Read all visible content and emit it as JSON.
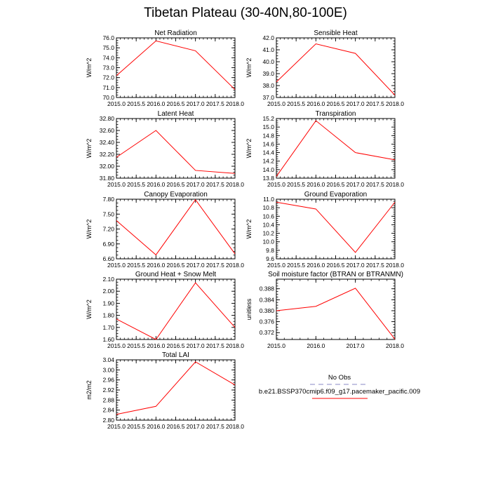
{
  "title": "Tibetan Plateau (30-40N,80-100E)",
  "legend": {
    "entries": [
      {
        "label": "No Obs",
        "color": "#b0b0d8",
        "style": "dashed"
      },
      {
        "label": "b.e21.BSSP370cmip6.f09_g17.pacemaker_pacific.009",
        "color": "#ff0000",
        "style": "solid"
      }
    ]
  },
  "chart_data": [
    {
      "type": "line",
      "title": "Net Radiation",
      "ylabel": "W/m^2",
      "xlim": [
        2015.0,
        2018.0
      ],
      "ylim": [
        70.0,
        76.0
      ],
      "xticks": [
        "2015.0",
        "2015.5",
        "2016.0",
        "2016.5",
        "2017.0",
        "2017.5",
        "2018.0"
      ],
      "yticks": [
        "70.0",
        "71.0",
        "72.0",
        "73.0",
        "74.0",
        "75.0",
        "76.0"
      ],
      "x": [
        2015,
        2016,
        2017,
        2018
      ],
      "series": [
        {
          "values": [
            72.2,
            75.7,
            74.7,
            70.8
          ],
          "color": "#ff0000"
        }
      ]
    },
    {
      "type": "line",
      "title": "Sensible Heat",
      "ylabel": "W/m^2",
      "xlim": [
        2015.0,
        2018.0
      ],
      "ylim": [
        37.0,
        42.0
      ],
      "xticks": [
        "2015.0",
        "2015.5",
        "2016.0",
        "2016.5",
        "2017.0",
        "2017.5",
        "2018.0"
      ],
      "yticks": [
        "37.0",
        "38.0",
        "39.0",
        "40.0",
        "41.0",
        "42.0"
      ],
      "x": [
        2015,
        2016,
        2017,
        2018
      ],
      "series": [
        {
          "values": [
            38.3,
            41.5,
            40.7,
            37.2
          ],
          "color": "#ff0000"
        }
      ]
    },
    {
      "type": "line",
      "title": "Latent Heat",
      "ylabel": "W/m^2",
      "xlim": [
        2015.0,
        2018.0
      ],
      "ylim": [
        31.8,
        32.8
      ],
      "xticks": [
        "2015.0",
        "2015.5",
        "2016.0",
        "2016.5",
        "2017.0",
        "2017.5",
        "2018.0"
      ],
      "yticks": [
        "31.80",
        "32.00",
        "32.20",
        "32.40",
        "32.60",
        "32.80"
      ],
      "x": [
        2015,
        2016,
        2017,
        2018
      ],
      "series": [
        {
          "values": [
            32.15,
            32.6,
            31.93,
            31.88
          ],
          "color": "#ff0000"
        }
      ]
    },
    {
      "type": "line",
      "title": "Transpiration",
      "ylabel": "W/m^2",
      "xlim": [
        2015.0,
        2018.0
      ],
      "ylim": [
        13.8,
        15.2
      ],
      "xticks": [
        "2015.0",
        "2015.5",
        "2016.0",
        "2016.5",
        "2017.0",
        "2017.5",
        "2018.0"
      ],
      "yticks": [
        "13.8",
        "14.0",
        "14.2",
        "14.4",
        "14.6",
        "14.8",
        "15.0",
        "15.2"
      ],
      "x": [
        2015,
        2016,
        2017,
        2018
      ],
      "series": [
        {
          "values": [
            13.84,
            15.15,
            14.4,
            14.23
          ],
          "color": "#ff0000"
        }
      ]
    },
    {
      "type": "line",
      "title": "Canopy Evaporation",
      "ylabel": "W/m^2",
      "xlim": [
        2015.0,
        2018.0
      ],
      "ylim": [
        6.6,
        7.8
      ],
      "xticks": [
        "2015.0",
        "2015.5",
        "2016.0",
        "2016.5",
        "2017.0",
        "2017.5",
        "2018.0"
      ],
      "yticks": [
        "6.60",
        "6.90",
        "7.20",
        "7.50",
        "7.80"
      ],
      "x": [
        2015,
        2016,
        2017,
        2018
      ],
      "series": [
        {
          "values": [
            7.37,
            6.68,
            7.79,
            6.7
          ],
          "color": "#ff0000"
        }
      ]
    },
    {
      "type": "line",
      "title": "Ground Evaporation",
      "ylabel": "W/m^2",
      "xlim": [
        2015.0,
        2018.0
      ],
      "ylim": [
        9.6,
        11.0
      ],
      "xticks": [
        "2015.0",
        "2015.5",
        "2016.0",
        "2016.5",
        "2017.0",
        "2017.5",
        "2018.0"
      ],
      "yticks": [
        "9.6",
        "9.8",
        "10.0",
        "10.2",
        "10.4",
        "10.6",
        "10.8",
        "11.0"
      ],
      "x": [
        2015,
        2016,
        2017,
        2018
      ],
      "series": [
        {
          "values": [
            10.93,
            10.77,
            9.75,
            10.93
          ],
          "color": "#ff0000"
        }
      ]
    },
    {
      "type": "line",
      "title": "Ground Heat + Snow Melt",
      "ylabel": "W/m^2",
      "xlim": [
        2015.0,
        2018.0
      ],
      "ylim": [
        1.6,
        2.1
      ],
      "xticks": [
        "2015.0",
        "2015.5",
        "2016.0",
        "2016.5",
        "2017.0",
        "2017.5",
        "2018.0"
      ],
      "yticks": [
        "1.60",
        "1.70",
        "1.80",
        "1.90",
        "2.00",
        "2.10"
      ],
      "x": [
        2015,
        2016,
        2017,
        2018
      ],
      "series": [
        {
          "values": [
            1.77,
            1.6,
            2.07,
            1.7
          ],
          "color": "#ff0000"
        }
      ]
    },
    {
      "type": "line",
      "title": "Soil moisture factor (BTRAN or BTRANMN)",
      "ylabel": "unitless",
      "xlim": [
        2015.0,
        2018.0
      ],
      "ylim": [
        0.3695,
        0.3915
      ],
      "xticks": [
        "2015.0",
        "2016.0",
        "2017.0",
        "2018.0"
      ],
      "yticks": [
        "0.372",
        "0.376",
        "0.380",
        "0.384",
        "0.388"
      ],
      "x": [
        2015,
        2016,
        2017,
        2018
      ],
      "series": [
        {
          "values": [
            0.38,
            0.3816,
            0.3882,
            0.3696
          ],
          "color": "#ff0000"
        }
      ]
    },
    {
      "type": "line",
      "title": "Total LAI",
      "ylabel": "m2/m2",
      "xlim": [
        2015.0,
        2018.0
      ],
      "ylim": [
        2.8,
        3.04
      ],
      "xticks": [
        "2015.0",
        "2015.5",
        "2016.0",
        "2016.5",
        "2017.0",
        "2017.5",
        "2018.0"
      ],
      "yticks": [
        "2.80",
        "2.84",
        "2.88",
        "2.92",
        "2.96",
        "3.00",
        "3.04"
      ],
      "x": [
        2015,
        2016,
        2017,
        2018
      ],
      "series": [
        {
          "values": [
            2.823,
            2.855,
            3.032,
            2.94
          ],
          "color": "#ff0000"
        }
      ]
    }
  ]
}
